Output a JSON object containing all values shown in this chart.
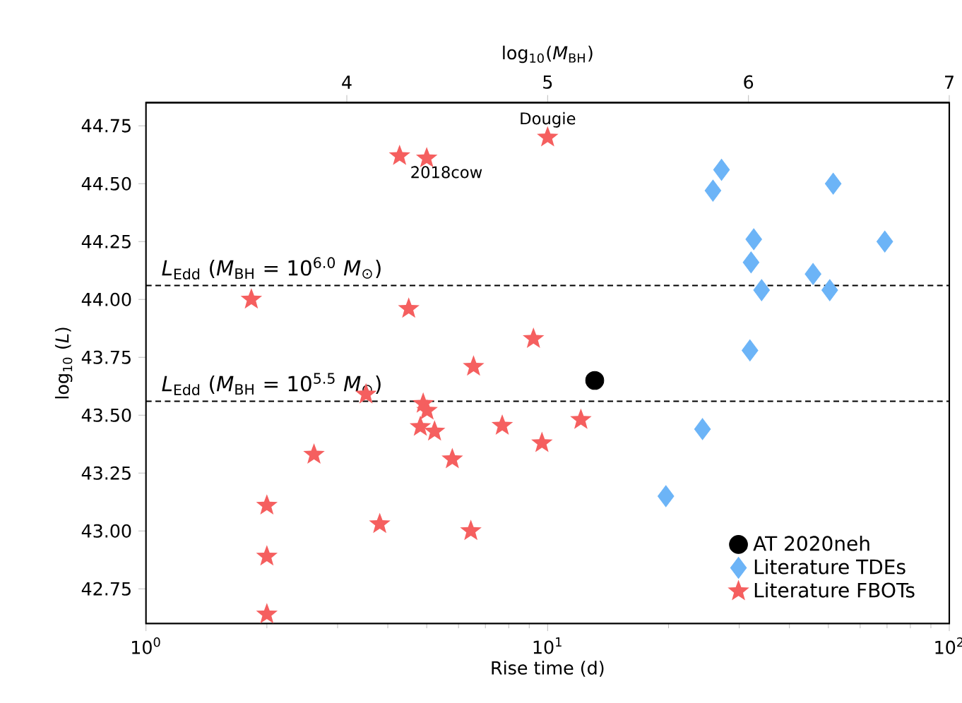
{
  "chart_data": {
    "type": "scatter",
    "xlabel": "Rise time (d)",
    "ylabel": "log$_{10}$ (*L*)",
    "x2label": "log$_{10}$(*M*$_{BH}$)",
    "log": "x",
    "xlim": [
      1,
      100
    ],
    "xticks": [
      {
        "value": 1,
        "label": "10$^{0}$"
      },
      {
        "value": 10,
        "label": "10$^{1}$"
      },
      {
        "value": 100,
        "label": "10$^{2}$"
      }
    ],
    "x2lim": [
      3,
      7
    ],
    "x2ticks": [
      4,
      5,
      6,
      7
    ],
    "ylim": [
      42.6,
      44.85
    ],
    "yticks": [
      {
        "value": 42.75,
        "label": "42.75"
      },
      {
        "value": 43.0,
        "label": "43.00"
      },
      {
        "value": 43.25,
        "label": "43.25"
      },
      {
        "value": 43.5,
        "label": "43.50"
      },
      {
        "value": 43.75,
        "label": "43.75"
      },
      {
        "value": 44.0,
        "label": "44.00"
      },
      {
        "value": 44.25,
        "label": "44.25"
      },
      {
        "value": 44.5,
        "label": "44.50"
      },
      {
        "value": 44.75,
        "label": "44.75"
      }
    ],
    "legend": "bottom right",
    "series": [
      {
        "name": "AT 2020neh",
        "color": "#000000",
        "marker": "circle",
        "x": [
          13.1
        ],
        "values": [
          43.65
        ]
      },
      {
        "name": "Literature TDEs",
        "color": "#6cb4f7",
        "marker": "diamond",
        "x": [
          31.9,
          24.3,
          19.7,
          27.1,
          25.8,
          51.4,
          32.6,
          69.1,
          32.1,
          45.8,
          34.1,
          50.4
        ],
        "values": [
          43.78,
          43.44,
          43.15,
          44.56,
          44.47,
          44.5,
          44.26,
          44.25,
          44.16,
          44.11,
          44.04,
          44.04
        ]
      },
      {
        "name": "Literature FBOTs",
        "color": "#f55f5f",
        "marker": "star",
        "x": [
          10.0,
          4.28,
          5.0,
          1.83,
          4.51,
          9.22,
          6.54,
          3.53,
          4.9,
          5.01,
          4.82,
          5.23,
          7.71,
          9.68,
          2.62,
          5.79,
          2.0,
          3.82,
          6.44,
          2.0,
          2.0,
          12.1
        ],
        "values": [
          44.7,
          44.62,
          44.61,
          44.0,
          43.96,
          43.83,
          43.71,
          43.59,
          43.55,
          43.52,
          43.45,
          43.43,
          43.455,
          43.38,
          43.33,
          43.31,
          43.11,
          43.03,
          43.0,
          42.89,
          42.64,
          43.48
        ]
      }
    ],
    "ref_lines": [
      {
        "axis": "y",
        "value": 44.06,
        "color": "#000000",
        "line_style": "dashed"
      },
      {
        "axis": "y",
        "value": 43.56,
        "color": "#000000",
        "line_style": "dashed"
      }
    ],
    "annotations": [
      {
        "text": "Dougie",
        "x": 10.0,
        "y": 44.7
      },
      {
        "text": "2018cow",
        "x": 5.0,
        "y": 44.61
      },
      "*L*$_{Edd}$ (*M*$_{BH}$ = 10$^{6.0}$ *M*$_{⊙}$)",
      "*L*$_{Edd}$ (*M*$_{BH}$ = 10$^{5.5}$ *M*$_{⊙}$)"
    ]
  }
}
